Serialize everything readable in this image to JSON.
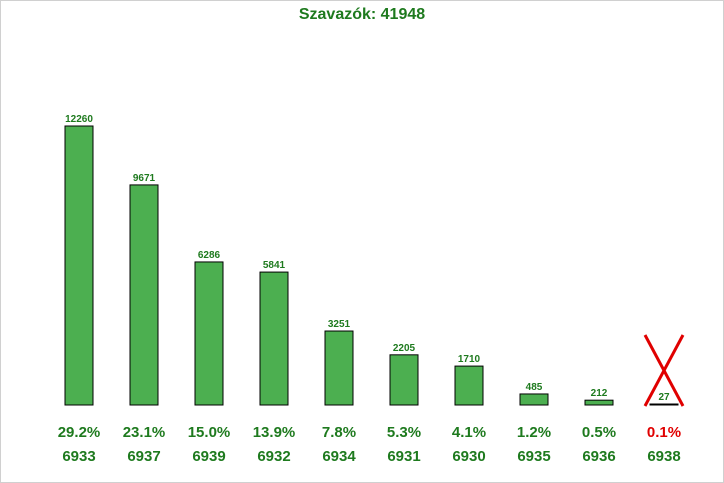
{
  "title": "Szavazók: 41948",
  "colors": {
    "bar_fill": "#4caf50",
    "bar_stroke": "#000000",
    "text_green": "#1e7a1e",
    "text_red": "#e00000",
    "cross": "#e00000"
  },
  "chart_data": {
    "type": "bar",
    "title": "Szavazók: 41948",
    "categories": [
      "6933",
      "6937",
      "6939",
      "6932",
      "6934",
      "6931",
      "6930",
      "6935",
      "6936",
      "6938"
    ],
    "values": [
      12260,
      9671,
      6286,
      5841,
      3251,
      2205,
      1710,
      485,
      212,
      27
    ],
    "value_labels": [
      "12260",
      "9671",
      "6286",
      "5841",
      "3251",
      "2205",
      "1710",
      "485",
      "212",
      "27"
    ],
    "percentages": [
      "29.2%",
      "23.1%",
      "15.0%",
      "13.9%",
      "7.8%",
      "5.3%",
      "4.1%",
      "1.2%",
      "0.5%",
      "0.1%"
    ],
    "crossed_out": [
      false,
      false,
      false,
      false,
      false,
      false,
      false,
      false,
      false,
      true
    ],
    "ylim": [
      0,
      12260
    ],
    "grid": false,
    "legend": "none"
  }
}
